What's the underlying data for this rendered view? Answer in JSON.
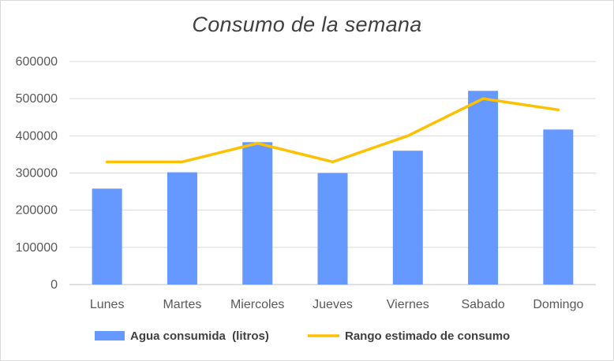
{
  "chart_data": {
    "type": "bar",
    "title": "Consumo de la semana",
    "xlabel": "",
    "ylabel": "",
    "categories": [
      "Lunes",
      "Martes",
      "Miercoles",
      "Jueves",
      "Viernes",
      "Sabado",
      "Domingo"
    ],
    "ylim": [
      0,
      600000
    ],
    "yticks": [
      0,
      100000,
      200000,
      300000,
      400000,
      500000,
      600000
    ],
    "ytick_labels": [
      "0",
      "100000",
      "200000",
      "300000",
      "400000",
      "500000",
      "600000"
    ],
    "grid": true,
    "legend_position": "bottom",
    "series": [
      {
        "name": "Agua consumida  (litros)",
        "type": "bar",
        "color": "#6699ff",
        "values": [
          258000,
          302000,
          383000,
          300000,
          360000,
          521000,
          417000
        ]
      },
      {
        "name": "Rango estimado de consumo",
        "type": "line",
        "color": "#ffc000",
        "values": [
          330000,
          330000,
          380000,
          330000,
          400000,
          500000,
          470000
        ]
      }
    ]
  }
}
